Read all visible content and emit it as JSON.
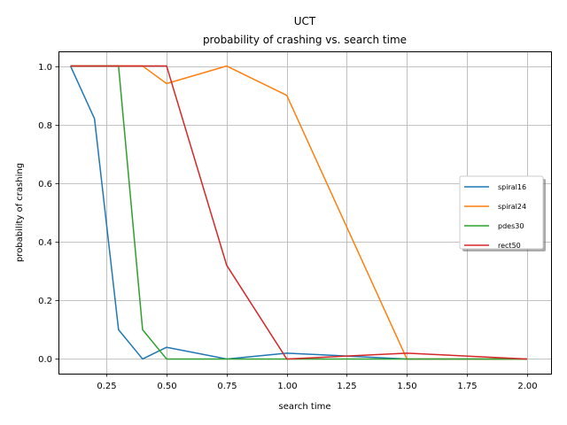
{
  "chart_data": {
    "type": "line",
    "title_line1": "UCT",
    "title_line2": "probability of crashing vs. search time",
    "xlabel": "search time",
    "ylabel": "probability of crashing",
    "xlim": [
      0.05,
      2.1
    ],
    "ylim": [
      -0.05,
      1.05
    ],
    "xticks": [
      0.25,
      0.5,
      0.75,
      1.0,
      1.25,
      1.5,
      1.75,
      2.0
    ],
    "xtick_labels": [
      "0.25",
      "0.50",
      "0.75",
      "1.00",
      "1.25",
      "1.50",
      "1.75",
      "2.00"
    ],
    "yticks": [
      0.0,
      0.2,
      0.4,
      0.6,
      0.8,
      1.0
    ],
    "ytick_labels": [
      "0.0",
      "0.2",
      "0.4",
      "0.6",
      "0.8",
      "1.0"
    ],
    "grid": true,
    "legend_position": "center-right",
    "series": [
      {
        "name": "spiral16",
        "color": "#1f77b4",
        "x": [
          0.1,
          0.2,
          0.3,
          0.4,
          0.5,
          0.75,
          1.0,
          1.5,
          2.0
        ],
        "y": [
          1.0,
          0.82,
          0.1,
          0.0,
          0.04,
          0.0,
          0.02,
          0.0,
          0.0
        ]
      },
      {
        "name": "spiral24",
        "color": "#ff7f0e",
        "x": [
          0.1,
          0.2,
          0.3,
          0.4,
          0.5,
          0.75,
          1.0,
          1.5,
          2.0
        ],
        "y": [
          1.0,
          1.0,
          1.0,
          1.0,
          0.94,
          1.0,
          0.9,
          0.0,
          0.0
        ]
      },
      {
        "name": "pdes30",
        "color": "#2ca02c",
        "x": [
          0.1,
          0.2,
          0.3,
          0.4,
          0.5,
          0.75,
          1.0,
          1.5,
          2.0
        ],
        "y": [
          1.0,
          1.0,
          1.0,
          0.1,
          0.0,
          0.0,
          0.0,
          0.0,
          0.0
        ]
      },
      {
        "name": "rect50",
        "color": "#d62728",
        "x": [
          0.1,
          0.2,
          0.3,
          0.4,
          0.5,
          0.75,
          1.0,
          1.5,
          2.0
        ],
        "y": [
          1.0,
          1.0,
          1.0,
          1.0,
          1.0,
          0.32,
          0.0,
          0.02,
          0.0
        ]
      }
    ]
  }
}
